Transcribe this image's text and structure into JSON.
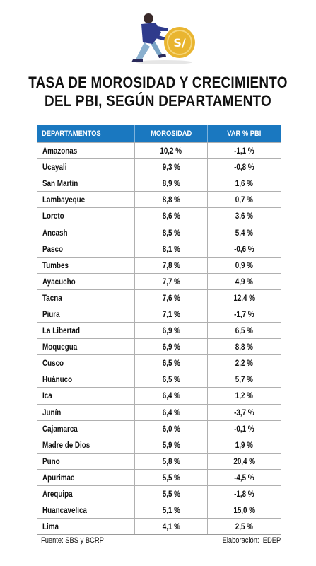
{
  "title": {
    "line1": "TASA DE MOROSIDAD Y CRECIMIENTO",
    "line2": "DEL PBI, SEGÚN DEPARTAMENTO"
  },
  "illustration": {
    "icon": "person-pushing-coin-icon",
    "coin_symbol": "S/.",
    "coin_color": "#e9b530",
    "figure_color": "#2f3b8c"
  },
  "table": {
    "header_color": "#1a78c0",
    "columns": [
      "DEPARTAMENTOS",
      "MOROSIDAD",
      "VAR % PBI"
    ],
    "rows": [
      [
        "Amazonas",
        "10,2 %",
        "-1,1 %"
      ],
      [
        "Ucayali",
        "9,3 %",
        "-0,8 %"
      ],
      [
        "San Martin",
        "8,9 %",
        "1,6 %"
      ],
      [
        "Lambayeque",
        "8,8 %",
        "0,7 %"
      ],
      [
        "Loreto",
        "8,6 %",
        "3,6 %"
      ],
      [
        "Ancash",
        "8,5 %",
        "5,4 %"
      ],
      [
        "Pasco",
        "8,1 %",
        "-0,6 %"
      ],
      [
        "Tumbes",
        "7,8 %",
        "0,9 %"
      ],
      [
        "Ayacucho",
        "7,7 %",
        "4,9 %"
      ],
      [
        "Tacna",
        "7,6 %",
        "12,4 %"
      ],
      [
        "Piura",
        "7,1 %",
        "-1,7 %"
      ],
      [
        "La Libertad",
        "6,9 %",
        "6,5 %"
      ],
      [
        "Moquegua",
        "6,9 %",
        "8,8 %"
      ],
      [
        "Cusco",
        "6,5 %",
        "2,2 %"
      ],
      [
        "Huánuco",
        "6,5 %",
        "5,7 %"
      ],
      [
        "Ica",
        "6,4 %",
        "1,2 %"
      ],
      [
        "Junín",
        "6,4 %",
        "-3,7 %"
      ],
      [
        "Cajamarca",
        "6,0 %",
        "-0,1 %"
      ],
      [
        "Madre de Dios",
        "5,9 %",
        "1,9 %"
      ],
      [
        "Puno",
        "5,8 %",
        "20,4 %"
      ],
      [
        "Apurimac",
        "5,5 %",
        "-4,5 %"
      ],
      [
        "Arequipa",
        "5,5 %",
        "-1,8 %"
      ],
      [
        "Huancavelica",
        "5,1 %",
        "15,0 %"
      ],
      [
        "Lima",
        "4,1 %",
        "2,5 %"
      ]
    ]
  },
  "footer": {
    "source": "Fuente: SBS y BCRP",
    "credit": "Elaboración: IEDEP"
  }
}
